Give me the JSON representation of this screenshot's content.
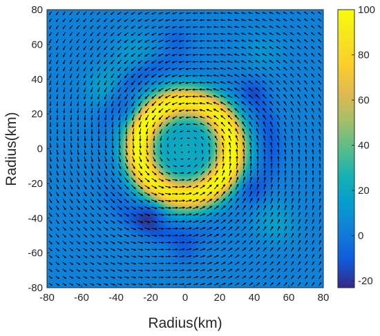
{
  "chart_data": {
    "type": "heatmap",
    "title": "",
    "xlabel": "Radius(km)",
    "ylabel": "Radius(km)",
    "xlim": [
      -80,
      80
    ],
    "ylim": [
      -80,
      80
    ],
    "x_ticks": [
      -80,
      -60,
      -40,
      -20,
      0,
      20,
      40,
      60,
      80
    ],
    "y_ticks": [
      -80,
      -60,
      -40,
      -20,
      0,
      20,
      40,
      60,
      80
    ],
    "x_tick_labels": [
      "-80",
      "-60",
      "-40",
      "-20",
      "0",
      "20",
      "40",
      "60",
      "80"
    ],
    "y_tick_labels": [
      "80",
      "60",
      "40",
      "20",
      "0",
      "-20",
      "-40",
      "-60",
      "-80"
    ],
    "colorbar": {
      "colormap": "parula",
      "clim": [
        -23,
        100
      ],
      "ticks": [
        100,
        80,
        60,
        40,
        20,
        0,
        -20
      ],
      "tick_labels": [
        "100",
        "80",
        "60",
        "40",
        "20",
        "0",
        "-20"
      ]
    },
    "field": {
      "description_values": {
        "background": 3,
        "center": 22,
        "ring_peak": 95,
        "ring_radius_km": 27
      },
      "ring_radius_km": 27,
      "ring_width_km": 9,
      "ring_peak": 95,
      "center_value": 22,
      "background_value": 3,
      "outer_ring_radius_km": 50,
      "outer_ring_min": -14,
      "negative_blobs": [
        {
          "x": -20,
          "y": -37,
          "value": -22
        },
        {
          "x": 38,
          "y": -23,
          "value": -14
        },
        {
          "x": -33,
          "y": 22,
          "value": -12
        },
        {
          "x": 40,
          "y": 33,
          "value": -12
        },
        {
          "x": -5,
          "y": 62,
          "value": -10
        },
        {
          "x": 0,
          "y": -58,
          "value": -10
        }
      ],
      "positive_lobes": [
        {
          "x": -45,
          "y": 35,
          "value": 22
        },
        {
          "x": 52,
          "y": -42,
          "value": 20
        },
        {
          "x": -30,
          "y": 55,
          "value": 16
        },
        {
          "x": 45,
          "y": 55,
          "value": 12
        }
      ]
    },
    "vectors": {
      "type": "quiver",
      "rotation": "counterclockwise",
      "grid_spacing_km": 4,
      "color": "#000000"
    }
  },
  "colors": {
    "background": "#ffffff",
    "axis": "#262626",
    "arrow": "#000000"
  }
}
